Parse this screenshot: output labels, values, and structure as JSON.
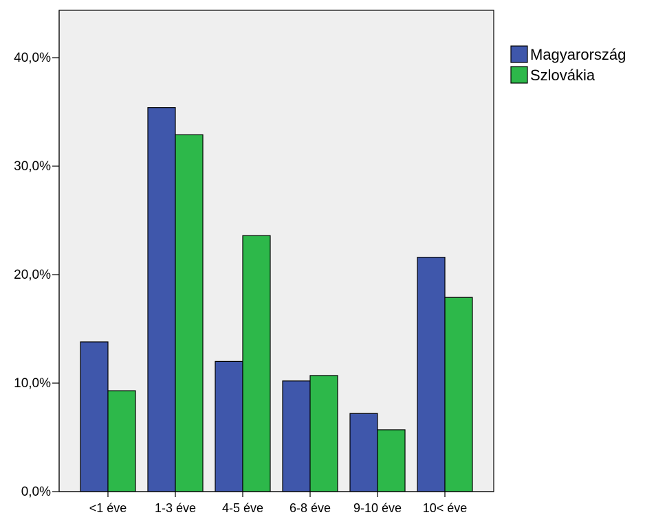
{
  "chart_data": {
    "type": "bar",
    "title": "",
    "xlabel": "",
    "ylabel": "",
    "categories": [
      "<1 éve",
      "1-3 éve",
      "4-5 éve",
      "6-8 éve",
      "9-10 éve",
      "10< éve"
    ],
    "series": [
      {
        "name": "Magyarország",
        "color": "#3f57ab",
        "values": [
          13.8,
          35.4,
          12.0,
          10.2,
          7.2,
          21.6
        ]
      },
      {
        "name": "Szlovákia",
        "color": "#2db84a",
        "values": [
          9.3,
          32.9,
          23.6,
          10.7,
          5.7,
          17.9
        ]
      }
    ],
    "ylim": [
      0,
      44.5
    ],
    "yticks": [
      0,
      10,
      20,
      30,
      40
    ],
    "ytick_labels": [
      "0,0%",
      "10,0%",
      "20,0%",
      "30,0%",
      "40,0%"
    ],
    "grid": false,
    "legend_position": "top-right, outside plot",
    "plot_background": "#efefef"
  }
}
